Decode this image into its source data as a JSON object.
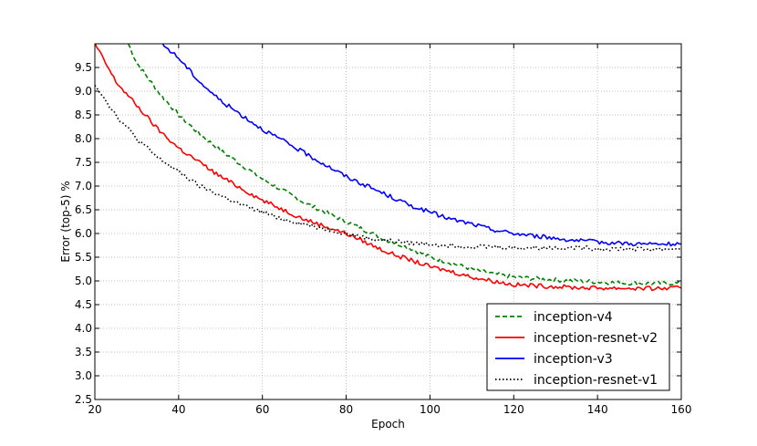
{
  "chart_data": {
    "type": "line",
    "xlabel": "Epoch",
    "ylabel": "Error (top-5) %",
    "xlim": [
      20,
      160
    ],
    "ylim": [
      2.5,
      10.0
    ],
    "xticks": [
      20,
      40,
      60,
      80,
      100,
      120,
      140,
      160
    ],
    "yticks": [
      2.5,
      3.0,
      3.5,
      4.0,
      4.5,
      5.0,
      5.5,
      6.0,
      6.5,
      7.0,
      7.5,
      8.0,
      8.5,
      9.0,
      9.5
    ],
    "ytick_labels": [
      "2.5",
      "3.0",
      "3.5",
      "4.0",
      "4.5",
      "5.0",
      "5.5",
      "6.0",
      "6.5",
      "7.0",
      "7.5",
      "8.0",
      "8.5",
      "9.0",
      "9.5"
    ],
    "grid": true,
    "legend_position": "bottom-right",
    "series": [
      {
        "name": "inception-v4",
        "color": "#008000",
        "style": "dashed",
        "x": [
          28,
          30,
          35,
          40,
          45,
          50,
          55,
          60,
          65,
          70,
          75,
          80,
          85,
          90,
          95,
          100,
          105,
          110,
          115,
          120,
          125,
          130,
          135,
          140,
          145,
          150,
          155,
          160
        ],
        "y": [
          10.0,
          9.6,
          9.0,
          8.5,
          8.1,
          7.75,
          7.45,
          7.15,
          6.9,
          6.65,
          6.45,
          6.25,
          6.05,
          5.85,
          5.7,
          5.5,
          5.38,
          5.25,
          5.15,
          5.08,
          5.05,
          5.02,
          5.0,
          4.98,
          4.96,
          4.95,
          4.95,
          4.95
        ]
      },
      {
        "name": "inception-resnet-v2",
        "color": "#ff0000",
        "style": "solid",
        "x": [
          20,
          25,
          30,
          35,
          40,
          45,
          50,
          55,
          60,
          65,
          70,
          75,
          80,
          85,
          90,
          95,
          100,
          105,
          110,
          115,
          120,
          125,
          130,
          135,
          140,
          145,
          150,
          155,
          160
        ],
        "y": [
          10.0,
          9.2,
          8.7,
          8.2,
          7.8,
          7.5,
          7.2,
          6.95,
          6.7,
          6.5,
          6.3,
          6.15,
          6.0,
          5.8,
          5.6,
          5.45,
          5.3,
          5.2,
          5.08,
          5.0,
          4.92,
          4.9,
          4.88,
          4.86,
          4.85,
          4.85,
          4.84,
          4.84,
          4.85
        ]
      },
      {
        "name": "inception-v3",
        "color": "#0000ff",
        "style": "solid",
        "x": [
          36,
          40,
          45,
          50,
          55,
          60,
          65,
          70,
          75,
          80,
          85,
          90,
          95,
          100,
          105,
          110,
          115,
          120,
          125,
          130,
          135,
          140,
          145,
          150,
          155,
          160
        ],
        "y": [
          10.0,
          9.7,
          9.2,
          8.8,
          8.5,
          8.2,
          7.95,
          7.7,
          7.45,
          7.2,
          7.0,
          6.8,
          6.6,
          6.45,
          6.3,
          6.2,
          6.08,
          6.0,
          5.95,
          5.9,
          5.85,
          5.82,
          5.8,
          5.78,
          5.77,
          5.78
        ]
      },
      {
        "name": "inception-resnet-v1",
        "color": "#000000",
        "style": "dotted",
        "x": [
          20,
          25,
          30,
          35,
          40,
          45,
          50,
          55,
          60,
          65,
          70,
          75,
          80,
          85,
          90,
          95,
          100,
          105,
          110,
          115,
          120,
          125,
          130,
          135,
          140,
          145,
          150,
          155,
          160
        ],
        "y": [
          9.15,
          8.5,
          8.0,
          7.6,
          7.3,
          7.0,
          6.8,
          6.6,
          6.45,
          6.3,
          6.2,
          6.1,
          6.0,
          5.9,
          5.85,
          5.8,
          5.78,
          5.75,
          5.73,
          5.72,
          5.7,
          5.7,
          5.7,
          5.7,
          5.68,
          5.68,
          5.67,
          5.67,
          5.68
        ]
      }
    ]
  }
}
